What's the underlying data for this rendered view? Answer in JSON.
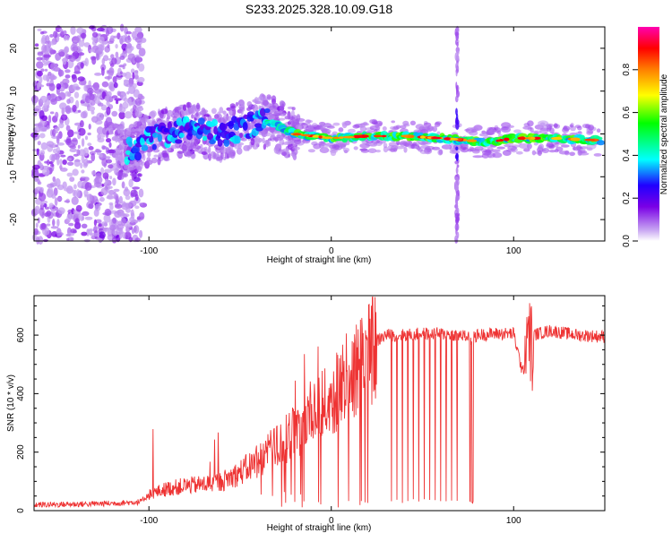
{
  "title": "S233.2025.328.10.09.G18",
  "chart_data": [
    {
      "type": "heatmap",
      "title": "S233.2025.328.10.09.G18",
      "xlabel": "Height of straight line (km)",
      "ylabel": "Frequency (Hz)",
      "xlim": [
        -163,
        150
      ],
      "ylim": [
        -25,
        25
      ],
      "x_ticks": [
        -100,
        0,
        100
      ],
      "y_ticks": [
        -20,
        -10,
        0,
        10,
        20
      ],
      "colorbar": {
        "label": "Normalized spectral amplitude",
        "range": [
          0,
          1
        ],
        "ticks": [
          "0.0",
          "0.2",
          "0.4",
          "0.6",
          "0.8"
        ],
        "colors": [
          "#ffffff",
          "#7a00e6",
          "#0000ff",
          "#00ffff",
          "#00ff00",
          "#ffff00",
          "#ff8000",
          "#ff0000",
          "#ff00b0"
        ]
      },
      "ridge": {
        "description": "frequency ridge centered near 0 Hz",
        "x": [
          -110,
          -100,
          -80,
          -60,
          -45,
          -35,
          -20,
          0,
          20,
          40,
          60,
          75,
          85,
          100,
          120,
          148
        ],
        "y": [
          -4,
          -1,
          1,
          0,
          2,
          3,
          0,
          -1,
          -0.5,
          -0.5,
          -1,
          -1.5,
          -2,
          -1,
          -1,
          -1.5
        ]
      },
      "spike_x": 69
    },
    {
      "type": "line",
      "xlabel": "Height of straight line (km)",
      "ylabel": "SNR (10 * v/v)",
      "xlim": [
        -163,
        150
      ],
      "ylim": [
        0,
        735
      ],
      "x_ticks": [
        -100,
        0,
        100
      ],
      "y_ticks": [
        0,
        200,
        400,
        600
      ],
      "series": [
        {
          "name": "SNR",
          "color": "#ee3333",
          "x": [
            -163,
            -140,
            -120,
            -105,
            -100,
            -90,
            -80,
            -70,
            -60,
            -50,
            -40,
            -30,
            -20,
            -10,
            0,
            10,
            20,
            25,
            30,
            40,
            50,
            60,
            70,
            78,
            80,
            90,
            100,
            105,
            110,
            120,
            135,
            150
          ],
          "y": [
            20,
            22,
            25,
            30,
            55,
            75,
            85,
            90,
            100,
            130,
            170,
            220,
            270,
            330,
            380,
            450,
            520,
            580,
            600,
            600,
            605,
            605,
            600,
            590,
            600,
            605,
            605,
            470,
            600,
            615,
            600,
            595
          ]
        }
      ],
      "dropouts_x": [
        -25,
        -20,
        -15,
        -7,
        20,
        33,
        36,
        39,
        42,
        45,
        48,
        51,
        54,
        57,
        60,
        63,
        66,
        69,
        76,
        77
      ],
      "dropout_band": [
        76,
        78
      ]
    }
  ]
}
